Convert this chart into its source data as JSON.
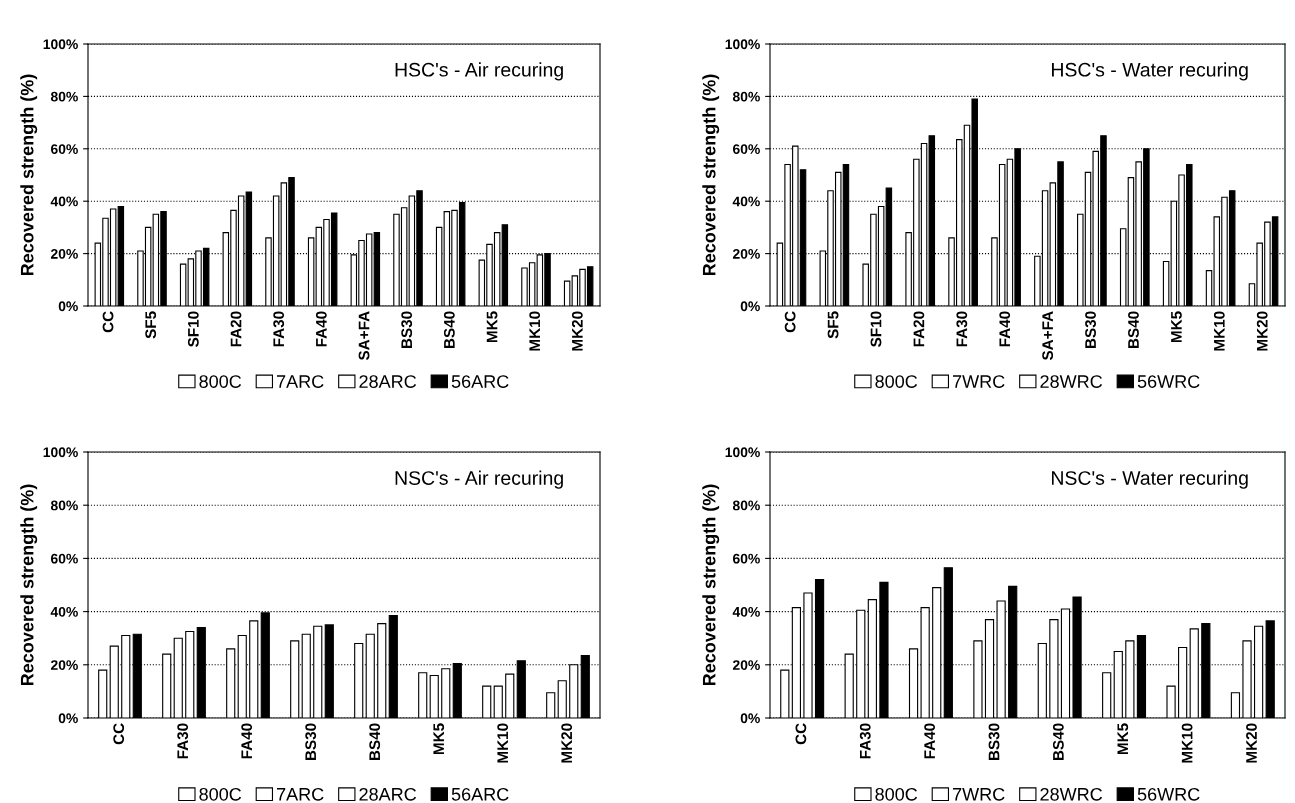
{
  "chart_data": [
    {
      "type": "bar",
      "title": "HSC's - Air recuring",
      "ylabel": "Recovered strength (%)",
      "categories": [
        "CC",
        "SF5",
        "SF10",
        "FA20",
        "FA30",
        "FA40",
        "SA+FA",
        "BS30",
        "BS40",
        "MK5",
        "MK10",
        "MK20"
      ],
      "series": [
        {
          "name": "800C",
          "color": "#ffffff",
          "values": [
            24,
            21,
            16,
            28,
            26,
            26,
            19.5,
            35,
            30,
            17.5,
            14.5,
            9.5
          ]
        },
        {
          "name": "7ARC",
          "color": "#ffffff",
          "values": [
            33.5,
            30,
            18,
            36.5,
            42,
            30,
            25,
            37.5,
            36,
            23.5,
            16.5,
            11.5
          ]
        },
        {
          "name": "28ARC",
          "color": "#ffffff",
          "values": [
            37,
            35,
            21,
            42,
            47,
            33,
            27.5,
            42,
            36.5,
            28,
            19.5,
            14
          ]
        },
        {
          "name": "56ARC",
          "color": "#000000",
          "values": [
            38,
            36,
            22,
            43.5,
            49,
            35.5,
            28,
            44,
            39.5,
            31,
            20,
            15
          ]
        }
      ],
      "ylim": [
        0,
        100
      ],
      "yticks": [
        {
          "value": 0,
          "label": "0%"
        },
        {
          "value": 20,
          "label": "20%"
        },
        {
          "value": 40,
          "label": "40%"
        },
        {
          "value": 60,
          "label": "60%"
        },
        {
          "value": 80,
          "label": "80%"
        },
        {
          "value": 100,
          "label": "100%"
        }
      ],
      "grid": "y",
      "legend": "bottom"
    },
    {
      "type": "bar",
      "title": "HSC's - Water recuring",
      "ylabel": "Recovered strength (%)",
      "categories": [
        "CC",
        "SF5",
        "SF10",
        "FA20",
        "FA30",
        "FA40",
        "SA+FA",
        "BS30",
        "BS40",
        "MK5",
        "MK10",
        "MK20"
      ],
      "series": [
        {
          "name": "800C",
          "color": "#ffffff",
          "values": [
            24,
            21,
            16,
            28,
            26,
            26,
            19,
            35,
            29.5,
            17,
            13.5,
            8.5
          ]
        },
        {
          "name": "7WRC",
          "color": "#ffffff",
          "values": [
            54,
            44,
            35,
            56,
            63.5,
            54,
            44,
            51,
            49,
            40,
            34,
            24
          ]
        },
        {
          "name": "28WRC",
          "color": "#ffffff",
          "values": [
            61,
            51,
            38,
            62,
            69,
            56,
            47,
            59,
            55,
            50,
            41.5,
            32
          ]
        },
        {
          "name": "56WRC",
          "color": "#000000",
          "values": [
            52,
            54,
            45,
            65,
            79,
            60,
            55,
            65,
            60,
            54,
            44,
            34
          ]
        }
      ],
      "ylim": [
        0,
        100
      ],
      "yticks": [
        {
          "value": 0,
          "label": "0%"
        },
        {
          "value": 20,
          "label": "20%"
        },
        {
          "value": 40,
          "label": "40%"
        },
        {
          "value": 60,
          "label": "60%"
        },
        {
          "value": 80,
          "label": "80%"
        },
        {
          "value": 100,
          "label": "100%"
        }
      ],
      "grid": "y",
      "legend": "bottom"
    },
    {
      "type": "bar",
      "title": "NSC's - Air recuring",
      "ylabel": "Recovered strength (%)",
      "categories": [
        "CC",
        "FA30",
        "FA40",
        "BS30",
        "BS40",
        "MK5",
        "MK10",
        "MK20"
      ],
      "series": [
        {
          "name": "800C",
          "color": "#ffffff",
          "values": [
            18,
            24,
            26,
            29,
            28,
            17,
            12,
            9.5
          ]
        },
        {
          "name": "7ARC",
          "color": "#ffffff",
          "values": [
            27,
            30,
            31,
            31.5,
            31.5,
            16,
            12,
            14
          ]
        },
        {
          "name": "28ARC",
          "color": "#ffffff",
          "values": [
            31,
            32.5,
            36.5,
            34.5,
            35.5,
            18.5,
            16.5,
            20
          ]
        },
        {
          "name": "56ARC",
          "color": "#000000",
          "values": [
            31.5,
            34,
            39.5,
            35,
            38.5,
            20.5,
            21.5,
            23.5
          ]
        }
      ],
      "ylim": [
        0,
        100
      ],
      "yticks": [
        {
          "value": 0,
          "label": "0%"
        },
        {
          "value": 20,
          "label": "20%"
        },
        {
          "value": 40,
          "label": "40%"
        },
        {
          "value": 60,
          "label": "60%"
        },
        {
          "value": 80,
          "label": "80%"
        },
        {
          "value": 100,
          "label": "100%"
        }
      ],
      "grid": "y",
      "legend": "bottom"
    },
    {
      "type": "bar",
      "title": "NSC's - Water recuring",
      "ylabel": "Recovered strength (%)",
      "categories": [
        "CC",
        "FA30",
        "FA40",
        "BS30",
        "BS40",
        "MK5",
        "MK10",
        "MK20"
      ],
      "series": [
        {
          "name": "800C",
          "color": "#ffffff",
          "values": [
            18,
            24,
            26,
            29,
            28,
            17,
            12,
            9.5
          ]
        },
        {
          "name": "7WRC",
          "color": "#ffffff",
          "values": [
            41.5,
            40.5,
            41.5,
            37,
            37,
            25,
            26.5,
            29
          ]
        },
        {
          "name": "28WRC",
          "color": "#ffffff",
          "values": [
            47,
            44.5,
            49,
            44,
            41,
            29,
            33.5,
            34.5
          ]
        },
        {
          "name": "56WRC",
          "color": "#000000",
          "values": [
            52,
            51,
            56.5,
            49.5,
            45.5,
            31,
            35.5,
            36.5
          ]
        }
      ],
      "ylim": [
        0,
        100
      ],
      "yticks": [
        {
          "value": 0,
          "label": "0%"
        },
        {
          "value": 20,
          "label": "20%"
        },
        {
          "value": 40,
          "label": "40%"
        },
        {
          "value": 60,
          "label": "60%"
        },
        {
          "value": 80,
          "label": "80%"
        },
        {
          "value": 100,
          "label": "100%"
        }
      ],
      "grid": "y",
      "legend": "bottom"
    }
  ]
}
